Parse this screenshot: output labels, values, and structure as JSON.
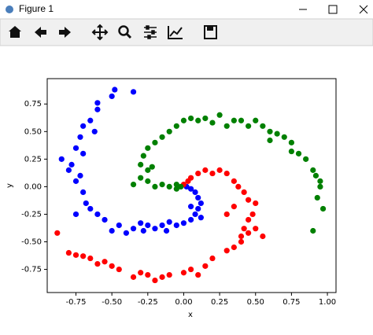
{
  "window": {
    "title": "Figure 1"
  },
  "chart_data": {
    "type": "scatter",
    "xlabel": "x",
    "ylabel": "y",
    "xlim": [
      -0.95,
      1.06
    ],
    "ylim": [
      -0.96,
      0.98
    ],
    "xticks": [
      {
        "value": -0.75,
        "label": "-0.75"
      },
      {
        "value": -0.5,
        "label": "-0.50"
      },
      {
        "value": -0.25,
        "label": "-0.25"
      },
      {
        "value": 0,
        "label": "0.00"
      },
      {
        "value": 0.25,
        "label": "0.25"
      },
      {
        "value": 0.5,
        "label": "0.50"
      },
      {
        "value": 0.75,
        "label": "0.75"
      },
      {
        "value": 1,
        "label": "1.00"
      }
    ],
    "yticks": [
      {
        "value": -0.75,
        "label": "-0.75"
      },
      {
        "value": -0.5,
        "label": "-0.50"
      },
      {
        "value": -0.25,
        "label": "-0.25"
      },
      {
        "value": 0,
        "label": "0.00"
      },
      {
        "value": 0.25,
        "label": "0.25"
      },
      {
        "value": 0.5,
        "label": "0.50"
      },
      {
        "value": 0.75,
        "label": "0.75"
      }
    ],
    "series": [
      {
        "color": "#0000ff",
        "x": [
          0.02,
          0.05,
          0.08,
          0.1,
          0.12,
          0.1,
          0.05,
          0.08,
          0.12,
          0.05,
          0.0,
          -0.05,
          -0.1,
          -0.12,
          -0.15,
          -0.2,
          -0.25,
          -0.28,
          -0.3,
          -0.35,
          -0.4,
          -0.45,
          -0.5,
          -0.55,
          -0.6,
          -0.65,
          -0.68,
          -0.7,
          -0.75,
          -0.72,
          -0.8,
          -0.78,
          -0.75,
          -0.7,
          -0.72,
          -0.7,
          -0.65,
          -0.6,
          -0.6,
          -0.5,
          -0.48,
          -0.35,
          -0.75,
          -0.85,
          -0.62
        ],
        "values": [
          0.0,
          -0.02,
          -0.05,
          -0.1,
          -0.15,
          -0.2,
          -0.18,
          -0.25,
          -0.28,
          -0.3,
          -0.33,
          -0.35,
          -0.32,
          -0.4,
          -0.35,
          -0.38,
          -0.35,
          -0.4,
          -0.33,
          -0.38,
          -0.42,
          -0.35,
          -0.4,
          -0.3,
          -0.25,
          -0.2,
          -0.15,
          -0.05,
          0.05,
          0.1,
          0.15,
          0.2,
          0.35,
          0.3,
          0.45,
          0.55,
          0.6,
          0.7,
          0.76,
          0.82,
          0.88,
          0.86,
          -0.25,
          0.25,
          0.5
        ]
      },
      {
        "color": "#ff0000",
        "x": [
          0.0,
          0.03,
          0.05,
          0.1,
          0.15,
          0.2,
          0.25,
          0.3,
          0.35,
          0.38,
          0.42,
          0.45,
          0.5,
          0.48,
          0.45,
          0.42,
          0.45,
          0.5,
          0.4,
          0.35,
          0.3,
          0.2,
          0.15,
          0.1,
          0.05,
          0.0,
          -0.1,
          -0.15,
          -0.2,
          -0.25,
          -0.3,
          -0.35,
          -0.45,
          -0.5,
          -0.55,
          -0.6,
          -0.65,
          -0.7,
          -0.75,
          -0.8,
          -0.88,
          0.3,
          0.35,
          0.4,
          0.55
        ],
        "values": [
          0.02,
          0.05,
          0.08,
          0.12,
          0.15,
          0.12,
          0.15,
          0.12,
          0.05,
          0.0,
          -0.05,
          -0.12,
          -0.15,
          -0.25,
          -0.3,
          -0.38,
          -0.42,
          -0.38,
          -0.5,
          -0.55,
          -0.58,
          -0.65,
          -0.72,
          -0.8,
          -0.75,
          -0.78,
          -0.8,
          -0.82,
          -0.85,
          -0.8,
          -0.78,
          -0.82,
          -0.75,
          -0.72,
          -0.68,
          -0.7,
          -0.65,
          -0.63,
          -0.62,
          -0.6,
          -0.42,
          -0.25,
          -0.18,
          -0.45,
          -0.45
        ]
      },
      {
        "color": "#008000",
        "x": [
          -0.02,
          -0.05,
          -0.1,
          -0.15,
          -0.2,
          -0.25,
          -0.3,
          -0.25,
          -0.3,
          -0.28,
          -0.25,
          -0.2,
          -0.15,
          -0.1,
          -0.05,
          0.0,
          0.05,
          0.1,
          0.15,
          0.2,
          0.3,
          0.35,
          0.4,
          0.45,
          0.5,
          0.55,
          0.6,
          0.65,
          0.7,
          0.75,
          0.8,
          0.85,
          0.9,
          0.95,
          0.95,
          0.93,
          0.97,
          0.9,
          -0.35,
          0.25,
          0.6,
          0.75,
          -0.05,
          -0.22,
          0.92
        ],
        "values": [
          0.0,
          0.02,
          0.0,
          0.02,
          0.0,
          0.05,
          0.08,
          0.15,
          0.2,
          0.28,
          0.35,
          0.4,
          0.45,
          0.5,
          0.55,
          0.6,
          0.62,
          0.6,
          0.62,
          0.58,
          0.55,
          0.6,
          0.6,
          0.55,
          0.6,
          0.55,
          0.5,
          0.48,
          0.45,
          0.4,
          0.3,
          0.25,
          0.15,
          0.05,
          0.0,
          -0.1,
          -0.2,
          -0.4,
          0.02,
          0.65,
          0.42,
          0.32,
          -0.02,
          0.18,
          0.1
        ]
      }
    ]
  }
}
